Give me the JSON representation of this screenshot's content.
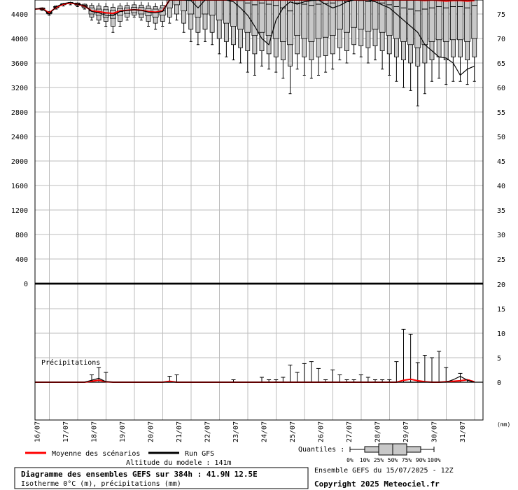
{
  "chart_data": {
    "type": "box",
    "title": "Diagramme des ensembles GEFS sur 384h : 41.9N 12.5E",
    "subtitle": "Isotherme 0°C (m), précipitations (mm)",
    "ensemble_label": "Ensemble GEFS du 15/07/2025 - 12Z",
    "copyright": "Copyright 2025 Meteociel.fr",
    "altitude_label": "Altitude du modele : 141m",
    "precip_label": "Précipitations",
    "units_label": "(mm)",
    "legend": {
      "mean": "Moyenne des scénarios",
      "run": "Run GFS",
      "mean_color": "#ff0000",
      "run_color": "#000000",
      "quantiles_title": "Quantiles :",
      "quantiles": [
        "0%",
        "10%",
        "25%",
        "50%",
        "75%",
        "90%",
        "100%"
      ]
    },
    "x_tick_labels": [
      "16/07",
      "17/07",
      "18/07",
      "19/07",
      "20/07",
      "21/07",
      "22/07",
      "23/07",
      "24/07",
      "25/07",
      "26/07",
      "27/07",
      "28/07",
      "29/07",
      "30/07",
      "31/07"
    ],
    "iso_axis": {
      "ylim": [
        0,
        4800
      ],
      "ticks": [
        0,
        400,
        800,
        1200,
        1600,
        2000,
        2400,
        2800,
        3200,
        3600,
        4000,
        4400
      ]
    },
    "right_axis_top": {
      "ticks": [
        25,
        30,
        35,
        40,
        45,
        50,
        55,
        60,
        65,
        70,
        75
      ]
    },
    "precip_axis": {
      "ylim": [
        -8,
        20
      ],
      "ticks": [
        0,
        5,
        10,
        15,
        20
      ]
    },
    "iso_series": {
      "x": [
        0,
        0.25,
        0.5,
        0.75,
        1,
        1.25,
        1.5,
        1.75,
        2,
        2.25,
        2.5,
        2.75,
        3,
        3.25,
        3.5,
        3.75,
        4,
        4.25,
        4.5,
        4.75,
        5,
        5.25,
        5.5,
        5.75,
        6,
        6.25,
        6.5,
        6.75,
        7,
        7.25,
        7.5,
        7.75,
        8,
        8.25,
        8.5,
        8.75,
        9,
        9.25,
        9.5,
        9.75,
        10,
        10.25,
        10.5,
        10.75,
        11,
        11.25,
        11.5,
        11.75,
        12,
        12.25,
        12.5,
        12.75,
        13,
        13.25,
        13.5,
        13.75,
        14,
        14.25,
        14.5,
        14.75,
        15,
        15.25,
        15.5
      ],
      "mean": [
        4480,
        4490,
        4420,
        4510,
        4560,
        4580,
        4560,
        4530,
        4450,
        4440,
        4420,
        4410,
        4450,
        4460,
        4470,
        4460,
        4440,
        4430,
        4450,
        4750,
        4760,
        4730,
        4710,
        4700,
        4710,
        4720,
        4730,
        4740,
        4730,
        4710,
        4690,
        4680,
        4690,
        4700,
        4690,
        4680,
        4670,
        4690,
        4700,
        4720,
        4710,
        4690,
        4680,
        4700,
        4710,
        4700,
        4690,
        4680,
        4680,
        4690,
        4680,
        4650,
        4640,
        4650,
        4630,
        4620,
        4630,
        4620,
        4610,
        4620,
        4620,
        4610,
        4620
      ],
      "run": [
        4480,
        4490,
        4400,
        4520,
        4570,
        4590,
        4560,
        4540,
        4440,
        4420,
        4380,
        4370,
        4440,
        4460,
        4470,
        4460,
        4430,
        4420,
        4440,
        4780,
        4800,
        4700,
        4620,
        4500,
        4650,
        4700,
        4720,
        4680,
        4600,
        4500,
        4380,
        4200,
        4000,
        3900,
        4300,
        4500,
        4600,
        4560,
        4600,
        4620,
        4700,
        4560,
        4500,
        4540,
        4600,
        4650,
        4680,
        4700,
        4600,
        4550,
        4500,
        4400,
        4300,
        4200,
        4100,
        3900,
        3800,
        3700,
        3680,
        3600,
        3400,
        3500,
        3550
      ],
      "p0": [
        4450,
        4460,
        4380,
        4480,
        4530,
        4550,
        4520,
        4480,
        4300,
        4250,
        4200,
        4100,
        4200,
        4300,
        4350,
        4300,
        4200,
        4150,
        4200,
        4250,
        4300,
        4100,
        3950,
        3900,
        3950,
        3900,
        3750,
        3700,
        3650,
        3600,
        3450,
        3400,
        3550,
        3500,
        3450,
        3350,
        3100,
        3500,
        3400,
        3350,
        3400,
        3450,
        3500,
        3650,
        3600,
        3750,
        3700,
        3600,
        3650,
        3500,
        3400,
        3300,
        3200,
        3150,
        2900,
        3100,
        3300,
        3350,
        3250,
        3300,
        3300,
        3250,
        3300
      ],
      "p10": [
        4470,
        4470,
        4400,
        4500,
        4550,
        4570,
        4540,
        4500,
        4350,
        4300,
        4280,
        4200,
        4280,
        4350,
        4380,
        4340,
        4280,
        4250,
        4280,
        4350,
        4400,
        4250,
        4150,
        4100,
        4150,
        4100,
        4000,
        3950,
        3900,
        3850,
        3800,
        3750,
        3800,
        3750,
        3700,
        3650,
        3550,
        3750,
        3700,
        3650,
        3700,
        3720,
        3750,
        3850,
        3800,
        3900,
        3880,
        3850,
        3880,
        3800,
        3750,
        3700,
        3650,
        3600,
        3550,
        3600,
        3650,
        3700,
        3650,
        3700,
        3700,
        3650,
        3700
      ],
      "p25": [
        4480,
        4480,
        4410,
        4510,
        4555,
        4575,
        4550,
        4515,
        4400,
        4380,
        4350,
        4330,
        4380,
        4410,
        4420,
        4400,
        4370,
        4350,
        4380,
        4500,
        4550,
        4450,
        4400,
        4350,
        4400,
        4380,
        4300,
        4250,
        4200,
        4150,
        4100,
        4050,
        4100,
        4050,
        4000,
        3950,
        3900,
        4050,
        4000,
        3950,
        4000,
        4020,
        4050,
        4150,
        4100,
        4180,
        4150,
        4120,
        4150,
        4100,
        4050,
        4000,
        3950,
        3900,
        3850,
        3900,
        3950,
        3980,
        3950,
        3980,
        3980,
        3950,
        4000
      ],
      "p50": [
        4485,
        4490,
        4420,
        4515,
        4560,
        4580,
        4560,
        4530,
        4450,
        4430,
        4410,
        4400,
        4440,
        4460,
        4470,
        4460,
        4440,
        4430,
        4450,
        4720,
        4730,
        4700,
        4680,
        4650,
        4680,
        4690,
        4680,
        4670,
        4650,
        4620,
        4580,
        4550,
        4580,
        4560,
        4540,
        4500,
        4450,
        4580,
        4560,
        4540,
        4560,
        4570,
        4580,
        4620,
        4600,
        4640,
        4620,
        4600,
        4620,
        4580,
        4550,
        4520,
        4500,
        4480,
        4450,
        4480,
        4500,
        4520,
        4500,
        4520,
        4520,
        4500,
        4540
      ],
      "p75": [
        4490,
        4495,
        4430,
        4520,
        4565,
        4585,
        4570,
        4545,
        4500,
        4480,
        4470,
        4460,
        4490,
        4500,
        4510,
        4505,
        4490,
        4480,
        4500,
        4850,
        4860,
        4840,
        4830,
        4820,
        4830,
        4840,
        4840,
        4830,
        4820,
        4810,
        4800,
        4790,
        4800,
        4795,
        4790,
        4780,
        4770,
        4800,
        4795,
        4790,
        4795,
        4800,
        4800,
        4810,
        4805,
        4815,
        4810,
        4805,
        4810,
        4800,
        4790,
        4780,
        4770,
        4765,
        4760,
        4770,
        4780,
        4785,
        4780,
        4785,
        4785,
        4780,
        4790
      ],
      "p90": [
        4500,
        4500,
        4440,
        4530,
        4570,
        4590,
        4580,
        4560,
        4540,
        4530,
        4520,
        4510,
        4530,
        4540,
        4550,
        4545,
        4530,
        4520,
        4540,
        4900,
        4900,
        4900,
        4900,
        4900,
        4900,
        4900,
        4900,
        4900,
        4900,
        4900,
        4900,
        4900,
        4900,
        4900,
        4900,
        4900,
        4900,
        4900,
        4900,
        4900,
        4900,
        4900,
        4900,
        4900,
        4900,
        4900,
        4900,
        4900,
        4900,
        4900,
        4900,
        4900,
        4900,
        4900,
        4900,
        4900,
        4900,
        4900,
        4900,
        4900,
        4900,
        4900,
        4900
      ],
      "p100": [
        4510,
        4510,
        4450,
        4540,
        4580,
        4600,
        4590,
        4570,
        4580,
        4580,
        4580,
        4570,
        4580,
        4590,
        4600,
        4600,
        4590,
        4580,
        4600,
        5000,
        5000,
        5000,
        5000,
        5000,
        5000,
        5000,
        5000,
        5000,
        5000,
        5000,
        5000,
        5000,
        5000,
        5000,
        5000,
        5000,
        5000,
        5000,
        5000,
        5000,
        5000,
        5000,
        5000,
        5000,
        5000,
        5000,
        5000,
        5000,
        5000,
        5000,
        5000,
        5000,
        5000,
        5000,
        5000,
        5000,
        5000,
        5000,
        5000,
        5000,
        5000,
        5000,
        5000
      ]
    },
    "precip_series": {
      "x": [
        0,
        0.25,
        0.5,
        0.75,
        1,
        1.25,
        1.5,
        1.75,
        2,
        2.25,
        2.5,
        2.75,
        3,
        3.25,
        3.5,
        3.75,
        4,
        4.25,
        4.5,
        4.75,
        5,
        5.25,
        5.5,
        5.75,
        6,
        6.25,
        6.5,
        6.75,
        7,
        7.25,
        7.5,
        7.75,
        8,
        8.25,
        8.5,
        8.75,
        9,
        9.25,
        9.5,
        9.75,
        10,
        10.25,
        10.5,
        10.75,
        11,
        11.25,
        11.5,
        11.75,
        12,
        12.25,
        12.5,
        12.75,
        13,
        13.25,
        13.5,
        13.75,
        14,
        14.25,
        14.5,
        14.75,
        15,
        15.25,
        15.5
      ],
      "mean": [
        0,
        0,
        0,
        0,
        0,
        0,
        0,
        0,
        0.2,
        0.4,
        0.1,
        0,
        0,
        0,
        0,
        0,
        0,
        0,
        0,
        0.2,
        0,
        0,
        0,
        0,
        0,
        0,
        0,
        0,
        0,
        0,
        0,
        0,
        0,
        0,
        0,
        0,
        0,
        0,
        0,
        0,
        0,
        0,
        0,
        0,
        0,
        0,
        0,
        0,
        0,
        0,
        0,
        0,
        0.4,
        0.6,
        0.3,
        0.1,
        0,
        0,
        0.1,
        0.2,
        0.3,
        0.5,
        0.1
      ],
      "run": [
        0,
        0,
        0,
        0,
        0,
        0,
        0,
        0,
        0.4,
        0.8,
        0.1,
        0,
        0,
        0,
        0,
        0,
        0,
        0,
        0,
        0,
        0,
        0,
        0,
        0,
        0,
        0,
        0,
        0,
        0,
        0,
        0,
        0,
        0,
        0,
        0,
        0,
        0,
        0,
        0,
        0,
        0,
        0,
        0,
        0,
        0,
        0,
        0,
        0,
        0,
        0,
        0,
        0,
        0,
        0,
        0,
        0,
        0,
        0,
        0,
        0.5,
        1.2,
        0.4,
        0
      ],
      "max": [
        0,
        0,
        0,
        0,
        0,
        0,
        0,
        0,
        1.5,
        3.0,
        2.0,
        0,
        0,
        0,
        0,
        0,
        0,
        0,
        0,
        1.2,
        1.5,
        0,
        0,
        0,
        0,
        0,
        0,
        0,
        0.5,
        0,
        0,
        0,
        1.0,
        0.5,
        0.5,
        1.0,
        3.5,
        2.0,
        3.8,
        4.2,
        2.8,
        0.5,
        2.5,
        1.5,
        0.5,
        0.5,
        1.5,
        1.0,
        0.5,
        0.5,
        0.5,
        4.2,
        10.8,
        9.8,
        4.0,
        5.5,
        5.0,
        6.3,
        3.0,
        0,
        1.8,
        0.5,
        0
      ]
    }
  }
}
